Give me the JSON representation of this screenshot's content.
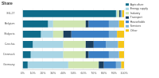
{
  "chart_data": {
    "type": "bar",
    "title": "Share",
    "orientation": "horizontal",
    "stacked": true,
    "grid": true,
    "legend": "right",
    "categories": [
      "EU-27",
      "Belgium",
      "Bulgaria",
      "Czechia",
      "Denmark",
      "Germany"
    ],
    "series": [
      {
        "name": "Agriculture",
        "color": "#0f6c8a",
        "values": [
          92,
          25,
          18,
          10,
          8,
          5
        ]
      },
      {
        "name": "Energy supply",
        "color": "#a8d5e5",
        "values": [
          1,
          5,
          12,
          30,
          32,
          40
        ]
      },
      {
        "name": "Industry",
        "color": "#cfe5b0",
        "values": [
          2,
          32,
          10,
          22,
          22,
          30
        ]
      },
      {
        "name": "Transport",
        "color": "#1c3f5e",
        "values": [
          1,
          3,
          8,
          8,
          3,
          5
        ]
      },
      {
        "name": "Households",
        "color": "#3b7fc4",
        "values": [
          1,
          20,
          37,
          12,
          20,
          12
        ]
      },
      {
        "name": "Services",
        "color": "#7fb2d8",
        "values": [
          1,
          10,
          8,
          12,
          10,
          5
        ]
      },
      {
        "name": "Other",
        "color": "#f5c518",
        "values": [
          2,
          5,
          7,
          6,
          5,
          3
        ]
      }
    ],
    "xlim": [
      0,
      100
    ],
    "xticks": [
      {
        "value": 0,
        "label": "0%"
      },
      {
        "value": 10,
        "label": "10%"
      },
      {
        "value": 20,
        "label": "20%"
      },
      {
        "value": 30,
        "label": "30%"
      },
      {
        "value": 40,
        "label": "40%"
      },
      {
        "value": 50,
        "label": "50%"
      },
      {
        "value": 60,
        "label": "60%"
      },
      {
        "value": 70,
        "label": "70%"
      },
      {
        "value": 80,
        "label": "80%"
      },
      {
        "value": 90,
        "label": "90%"
      },
      {
        "value": 100,
        "label": "100%"
      }
    ]
  }
}
